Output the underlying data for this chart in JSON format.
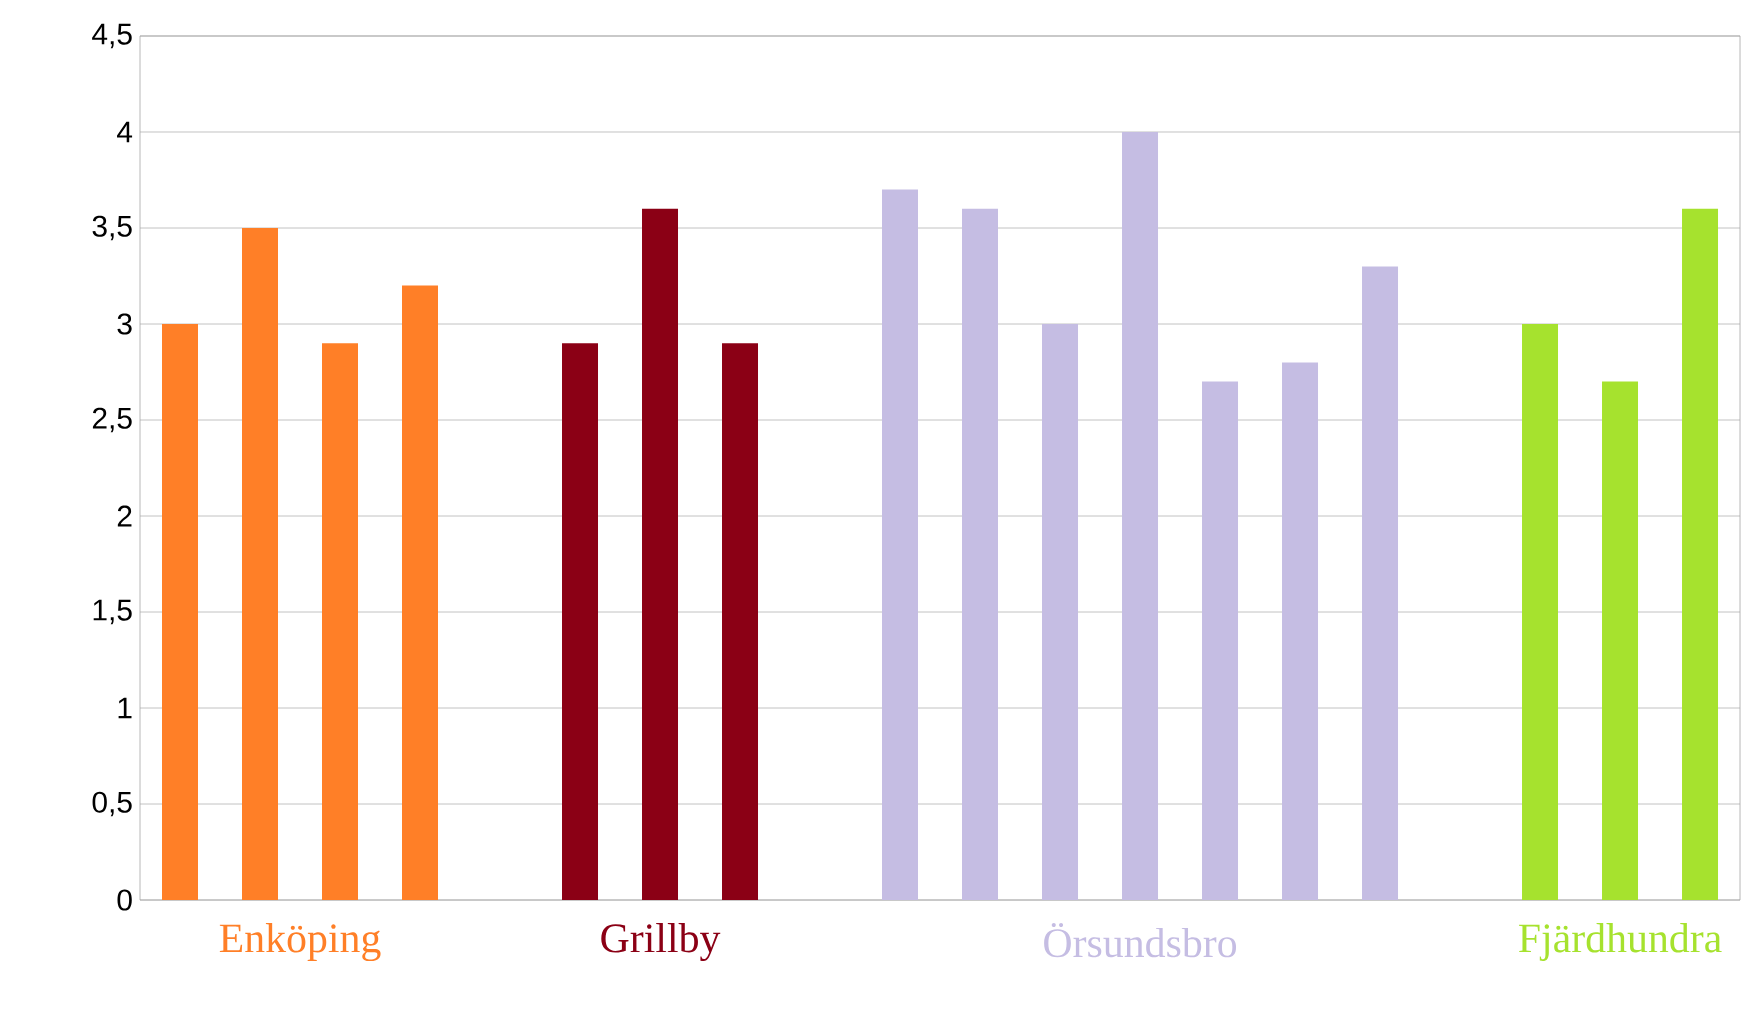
{
  "chart_data": {
    "type": "bar",
    "categories": [
      null,
      null,
      null,
      null,
      null,
      null,
      null,
      null,
      null,
      null,
      null,
      null,
      null,
      null,
      null,
      null,
      null,
      null,
      null,
      null
    ],
    "series": [
      {
        "name": "Enköping",
        "color": "#ff7f27",
        "values": [
          3.0,
          3.5,
          2.9,
          3.2,
          null,
          null,
          null,
          null,
          null,
          null,
          null,
          null,
          null,
          null,
          null,
          null,
          null,
          null,
          null,
          null
        ]
      },
      {
        "name": "Grillby",
        "color": "#8b0015",
        "values": [
          null,
          null,
          null,
          null,
          null,
          2.9,
          3.6,
          2.9,
          null,
          null,
          null,
          null,
          null,
          null,
          null,
          null,
          null,
          null,
          null,
          null
        ]
      },
      {
        "name": "Örsundsbro",
        "color": "#c5bde3",
        "values": [
          null,
          null,
          null,
          null,
          null,
          null,
          null,
          null,
          null,
          3.7,
          3.6,
          3.0,
          4.0,
          2.7,
          2.8,
          3.3,
          null,
          null,
          null,
          null
        ]
      },
      {
        "name": "Fjärdhundra",
        "color": "#a6e22e",
        "values": [
          null,
          null,
          null,
          null,
          null,
          null,
          null,
          null,
          null,
          null,
          null,
          null,
          null,
          null,
          null,
          null,
          null,
          3.0,
          2.7,
          3.6
        ]
      }
    ],
    "ylim": [
      0,
      4.5
    ],
    "yticks": [
      0,
      {
        "value": 0.5,
        "label": "0,5"
      },
      1,
      {
        "value": 1.5,
        "label": "1,5"
      },
      2,
      {
        "value": 2.5,
        "label": "2,5"
      },
      3,
      {
        "value": 3.5,
        "label": "3,5"
      },
      4,
      {
        "value": 4.5,
        "label": "4,5"
      }
    ],
    "grid": "y"
  }
}
